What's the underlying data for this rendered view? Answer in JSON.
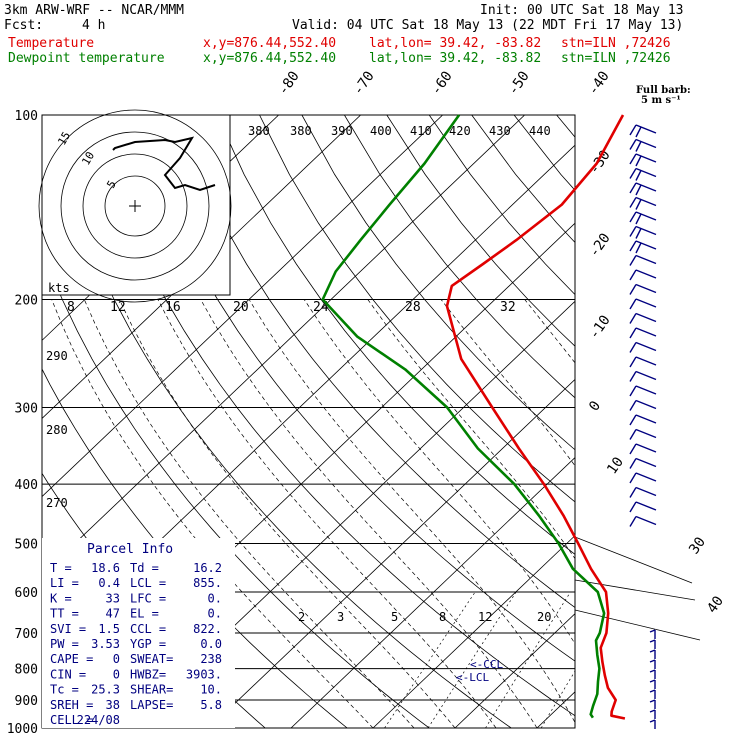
{
  "header": {
    "model": "3km ARW-WRF -- NCAR/MMM",
    "init": "Init: 00 UTC Sat 18 May 13",
    "fcst_label": "Fcst:",
    "fcst_value": "4 h",
    "valid": "Valid: 04 UTC Sat 18 May 13 (22 MDT Fri 17 May 13)"
  },
  "legend": [
    {
      "name": "Temperature",
      "color": "#e00000",
      "xy": "x,y=876.44,552.40",
      "latlon": "lat,lon= 39.42, -83.82",
      "stn": "stn=ILN ,72426"
    },
    {
      "name": "Dewpoint temperature",
      "color": "#008000",
      "xy": "x,y=876.44,552.40",
      "latlon": "lat,lon= 39.42, -83.82",
      "stn": "stn=ILN ,72426"
    }
  ],
  "barb_key": {
    "line1": "Full barb:",
    "line2": "5 m s⁻¹"
  },
  "hodograph": {
    "ring_labels": [
      "5",
      "10",
      "15"
    ],
    "kts_label": "kts"
  },
  "parcel_info": {
    "title": "Parcel Info",
    "rows": [
      [
        "T  =",
        "18.6",
        "Td =",
        "16.2"
      ],
      [
        "LI =",
        "0.4",
        "LCL =",
        "855."
      ],
      [
        "K  =",
        "33",
        "LFC =",
        "0."
      ],
      [
        "TT =",
        "47",
        "EL  =",
        "0."
      ],
      [
        "SVI =",
        "1.5",
        "CCL =",
        "822."
      ],
      [
        "PW =",
        "3.53",
        "YGP =",
        "0.0"
      ],
      [
        "CAPE =",
        "0",
        "SWEAT=",
        "238"
      ],
      [
        "CIN =",
        "0",
        "HWBZ=",
        "3903."
      ],
      [
        "Tc =",
        "25.3",
        "SHEAR=",
        "10."
      ],
      [
        "SREH =",
        "38",
        "LAPSE=",
        "5.8"
      ],
      [
        "CELL =",
        "224/08",
        "",
        ""
      ]
    ]
  },
  "chart_data": {
    "type": "line",
    "title": "",
    "y_axis": {
      "scale": "log",
      "ylim": [
        1000,
        100
      ],
      "tick_labels": [
        "100",
        "200",
        "300",
        "400",
        "500",
        "600",
        "700",
        "800",
        "900",
        "1000"
      ]
    },
    "isotherm_labels": [
      "-80",
      "-70",
      "-60",
      "-50",
      "-40",
      "-30",
      "-20",
      "-10",
      "0",
      "10",
      "30",
      "40"
    ],
    "theta_labels": [
      "380",
      "380",
      "390",
      "400",
      "410",
      "420",
      "430",
      "440"
    ],
    "theta_low_labels": [
      "290",
      "280",
      "270"
    ],
    "mixing_ratio_top": [
      "8",
      "12",
      "16",
      "20",
      "24",
      "28",
      "32"
    ],
    "mixing_ratio_low": [
      "2",
      "3",
      "5",
      "8",
      "12",
      "20"
    ],
    "annotations": [
      "<-CCL",
      "<-LCL"
    ],
    "series": [
      {
        "name": "Temperature",
        "color": "#e00000",
        "points": [
          [
            965,
            19.5
          ],
          [
            955,
            17.5
          ],
          [
            940,
            17
          ],
          [
            900,
            16
          ],
          [
            860,
            13.5
          ],
          [
            820,
            11.5
          ],
          [
            780,
            9.5
          ],
          [
            740,
            7.5
          ],
          [
            700,
            6.3
          ],
          [
            650,
            4.0
          ],
          [
            600,
            1.0
          ],
          [
            550,
            -3.8
          ],
          [
            500,
            -8.6
          ],
          [
            450,
            -14
          ],
          [
            400,
            -20.4
          ],
          [
            350,
            -28
          ],
          [
            300,
            -36.5
          ],
          [
            250,
            -46.5
          ],
          [
            205,
            -55
          ],
          [
            190,
            -57
          ],
          [
            175,
            -56
          ],
          [
            160,
            -55
          ],
          [
            140,
            -54
          ],
          [
            120,
            -55
          ],
          [
            100,
            -58
          ]
        ]
      },
      {
        "name": "Dewpoint temperature",
        "color": "#008000",
        "points": [
          [
            962,
            15.5
          ],
          [
            950,
            14.8
          ],
          [
            920,
            14
          ],
          [
            880,
            13
          ],
          [
            840,
            11.5
          ],
          [
            800,
            10
          ],
          [
            760,
            8
          ],
          [
            720,
            6
          ],
          [
            700,
            5.5
          ],
          [
            650,
            3.5
          ],
          [
            600,
            0
          ],
          [
            550,
            -6
          ],
          [
            500,
            -11
          ],
          [
            450,
            -17
          ],
          [
            400,
            -24
          ],
          [
            350,
            -33
          ],
          [
            300,
            -42
          ],
          [
            260,
            -52
          ],
          [
            230,
            -62
          ],
          [
            200,
            -71
          ],
          [
            180,
            -73
          ],
          [
            160,
            -74
          ],
          [
            140,
            -75
          ],
          [
            120,
            -76
          ],
          [
            100,
            -78
          ]
        ]
      }
    ],
    "hodograph_trace": [
      [
        0,
        0
      ]
    ],
    "grid": true
  },
  "wind_profile": {
    "top_count": 28,
    "bottom_count": 10
  }
}
